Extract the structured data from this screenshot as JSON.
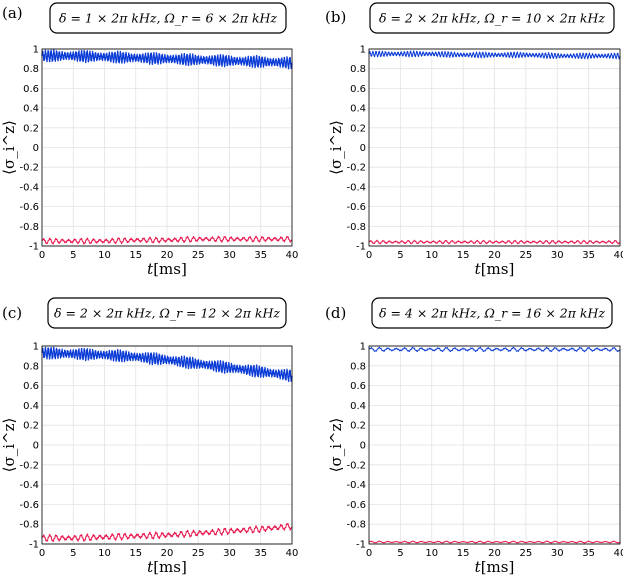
{
  "chart_data": [
    {
      "type": "line",
      "panel_label": "(a)",
      "params": "δ = 1 × 2π kHz,  Ω_r = 6 × 2π kHz",
      "xlabel": "t[ms]",
      "ylabel": "⟨σ_i^z⟩",
      "xlim": [
        0,
        40
      ],
      "ylim": [
        -1,
        1
      ],
      "xticks": [
        "0",
        "5",
        "10",
        "15",
        "20",
        "25",
        "30",
        "35",
        "40"
      ],
      "yticks": [
        "1",
        "0.8",
        "0.6",
        "0.4",
        "0.2",
        "0",
        "-0.2",
        "-0.4",
        "-0.6",
        "-0.8",
        "-1"
      ],
      "grid": true,
      "series": [
        {
          "color": "#0b3bd6",
          "x": [
            0,
            5,
            10,
            15,
            20,
            25,
            30,
            35,
            40
          ],
          "y": [
            0.93,
            0.93,
            0.92,
            0.91,
            0.9,
            0.89,
            0.88,
            0.87,
            0.86
          ],
          "oscillation_amplitude": 0.05,
          "oscillation_cycles": 90
        },
        {
          "color": "#e8174d",
          "x": [
            0,
            5,
            10,
            15,
            20,
            25,
            30,
            35,
            40
          ],
          "y": [
            -0.95,
            -0.95,
            -0.95,
            -0.94,
            -0.94,
            -0.93,
            -0.93,
            -0.93,
            -0.93
          ],
          "oscillation_amplitude": 0.025,
          "oscillation_cycles": 40
        }
      ]
    },
    {
      "type": "line",
      "panel_label": "(b)",
      "params": "δ = 2 × 2π kHz,  Ω_r = 10 × 2π kHz",
      "xlabel": "t[ms]",
      "ylabel": "⟨σ_i^z⟩",
      "xlim": [
        0,
        40
      ],
      "ylim": [
        -1,
        1
      ],
      "xticks": [
        "0",
        "5",
        "10",
        "15",
        "20",
        "25",
        "30",
        "35",
        "40"
      ],
      "yticks": [
        "1",
        "0.8",
        "0.6",
        "0.4",
        "0.2",
        "0",
        "-0.2",
        "-0.4",
        "-0.6",
        "-0.8",
        "-1"
      ],
      "grid": true,
      "series": [
        {
          "color": "#0b3bd6",
          "x": [
            0,
            5,
            10,
            15,
            20,
            25,
            30,
            35,
            40
          ],
          "y": [
            0.95,
            0.95,
            0.95,
            0.94,
            0.94,
            0.94,
            0.93,
            0.93,
            0.93
          ],
          "oscillation_amplitude": 0.025,
          "oscillation_cycles": 80
        },
        {
          "color": "#e8174d",
          "x": [
            0,
            5,
            10,
            15,
            20,
            25,
            30,
            35,
            40
          ],
          "y": [
            -0.96,
            -0.96,
            -0.96,
            -0.96,
            -0.96,
            -0.96,
            -0.96,
            -0.96,
            -0.96
          ],
          "oscillation_amplitude": 0.015,
          "oscillation_cycles": 40
        }
      ]
    },
    {
      "type": "line",
      "panel_label": "(c)",
      "params": "δ = 2 × 2π kHz,  Ω_r = 12 × 2π kHz",
      "xlabel": "t[ms]",
      "ylabel": "⟨σ_i^z⟩",
      "xlim": [
        0,
        40
      ],
      "ylim": [
        -1,
        1
      ],
      "xticks": [
        "0",
        "5",
        "10",
        "15",
        "20",
        "25",
        "30",
        "35",
        "40"
      ],
      "yticks": [
        "1",
        "0.8",
        "0.6",
        "0.4",
        "0.2",
        "0",
        "-0.2",
        "-0.4",
        "-0.6",
        "-0.8",
        "-1"
      ],
      "grid": true,
      "series": [
        {
          "color": "#0b3bd6",
          "x": [
            0,
            5,
            10,
            15,
            20,
            25,
            30,
            35,
            40
          ],
          "y": [
            0.93,
            0.92,
            0.91,
            0.89,
            0.86,
            0.82,
            0.78,
            0.74,
            0.7
          ],
          "oscillation_amplitude": 0.05,
          "oscillation_cycles": 90
        },
        {
          "color": "#e8174d",
          "x": [
            0,
            5,
            10,
            15,
            20,
            25,
            30,
            35,
            40
          ],
          "y": [
            -0.94,
            -0.94,
            -0.93,
            -0.92,
            -0.91,
            -0.89,
            -0.87,
            -0.85,
            -0.82
          ],
          "oscillation_amplitude": 0.03,
          "oscillation_cycles": 40
        }
      ]
    },
    {
      "type": "line",
      "panel_label": "(d)",
      "params": "δ = 4 × 2π kHz,  Ω_r = 16 × 2π kHz",
      "xlabel": "t[ms]",
      "ylabel": "⟨σ_i^z⟩",
      "xlim": [
        0,
        40
      ],
      "ylim": [
        -1,
        1
      ],
      "xticks": [
        "0",
        "5",
        "10",
        "15",
        "20",
        "25",
        "30",
        "35",
        "40"
      ],
      "yticks": [
        "1",
        "0.8",
        "0.6",
        "0.4",
        "0.2",
        "0",
        "-0.2",
        "-0.4",
        "-0.6",
        "-0.8",
        "-1"
      ],
      "grid": true,
      "series": [
        {
          "color": "#0b3bd6",
          "x": [
            0,
            5,
            10,
            15,
            20,
            25,
            30,
            35,
            40
          ],
          "y": [
            0.965,
            0.965,
            0.965,
            0.965,
            0.965,
            0.965,
            0.965,
            0.965,
            0.965
          ],
          "oscillation_amplitude": 0.018,
          "oscillation_cycles": 30
        },
        {
          "color": "#e8174d",
          "x": [
            0,
            5,
            10,
            15,
            20,
            25,
            30,
            35,
            40
          ],
          "y": [
            -0.98,
            -0.98,
            -0.98,
            -0.98,
            -0.98,
            -0.98,
            -0.98,
            -0.98,
            -0.98
          ],
          "oscillation_amplitude": 0.008,
          "oscillation_cycles": 30
        }
      ]
    }
  ]
}
